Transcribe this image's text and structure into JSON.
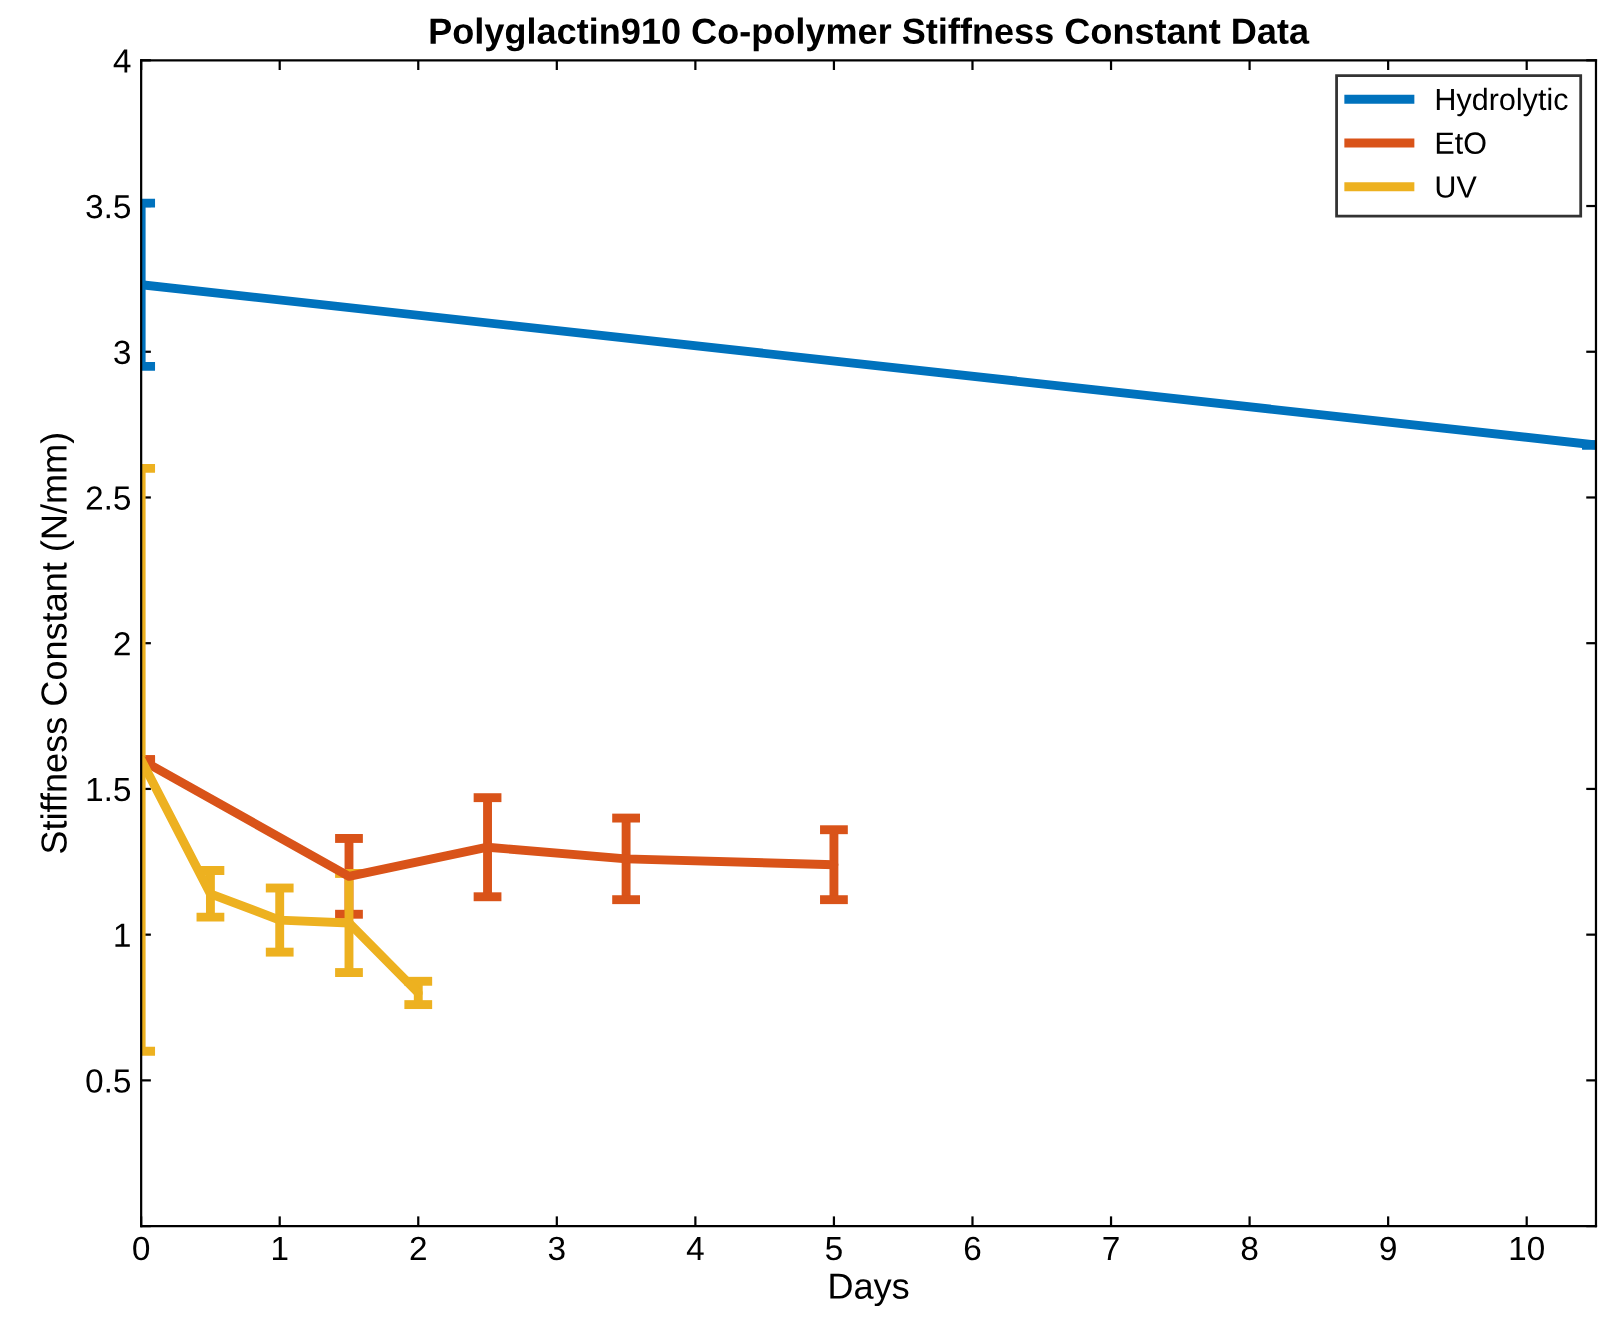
{
  "chart_data": {
    "type": "line",
    "title": "Polyglactin910 Co-polymer Stiffness Constant Data",
    "xlabel": "Days",
    "ylabel": "Stiffness Constant (N/mm)",
    "series": [
      {
        "name": "Hydrolytic",
        "color": "#0072bd",
        "x": [
          0,
          10.5
        ],
        "values": [
          3.23,
          2.68
        ],
        "errors": [
          0.28,
          null
        ]
      },
      {
        "name": "EtO",
        "color": "#d95319",
        "x": [
          0,
          1.5,
          2.5,
          3.5,
          5
        ],
        "values": [
          1.6,
          1.2,
          1.3,
          1.26,
          1.24
        ],
        "errors": [
          null,
          0.13,
          0.17,
          0.14,
          0.12
        ]
      },
      {
        "name": "UV",
        "color": "#edb120",
        "x": [
          0,
          0.5,
          1,
          1.5,
          2
        ],
        "values": [
          1.6,
          1.14,
          1.05,
          1.04,
          0.8
        ],
        "errors": [
          1.0,
          0.08,
          0.11,
          0.17,
          0.04
        ]
      }
    ],
    "xlim": [
      0,
      10.5
    ],
    "ylim": [
      0,
      4
    ],
    "xticks": [
      0,
      1,
      2,
      3,
      4,
      5,
      6,
      7,
      8,
      9,
      10
    ],
    "yticks": [
      {
        "value": 0,
        "label": null
      },
      0.5,
      1,
      1.5,
      2,
      2.5,
      3,
      3.5,
      4
    ],
    "legend": "top right",
    "grid": false
  }
}
